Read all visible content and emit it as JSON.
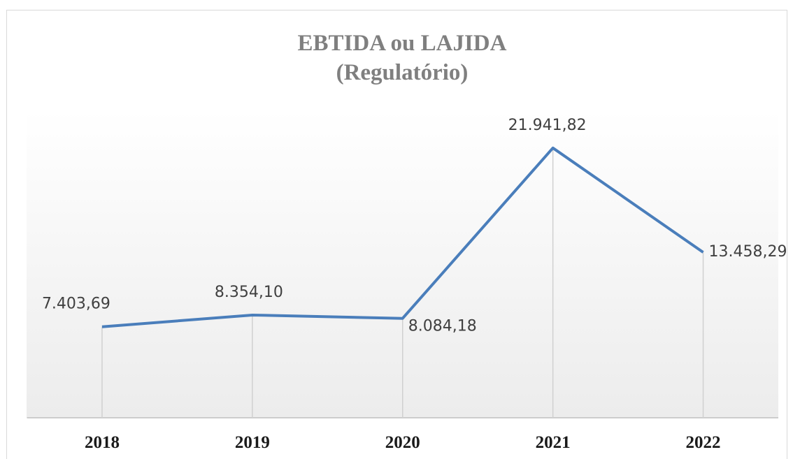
{
  "chart_data": {
    "type": "line",
    "title": [
      "EBTIDA ou LAJIDA",
      "(Regulatório)"
    ],
    "categories": [
      "2018",
      "2019",
      "2020",
      "2021",
      "2022"
    ],
    "series": [
      {
        "name": "EBTIDA ou LAJIDA",
        "color": "#4a7ebb",
        "values": [
          7403.69,
          8354.1,
          8084.18,
          21941.82,
          13458.29
        ],
        "value_labels": [
          "7.403,69",
          "8.354,10",
          "8.084,18",
          "21.941,82",
          "13.458,29"
        ]
      }
    ],
    "ylim": [
      0,
      25000
    ]
  }
}
